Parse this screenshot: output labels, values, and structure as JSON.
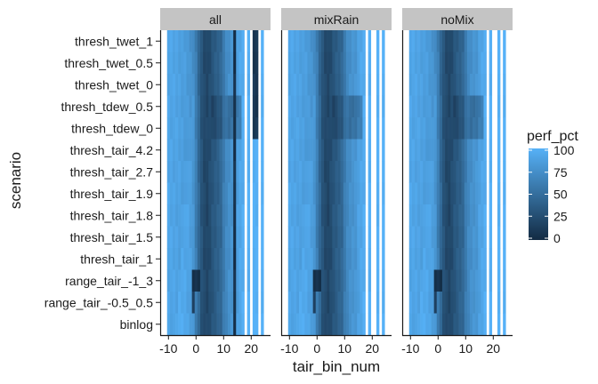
{
  "chart_data": {
    "type": "heatmap",
    "xlabel": "tair_bin_num",
    "ylabel": "scenario",
    "facets": [
      "all",
      "mixRain",
      "noMix"
    ],
    "scenarios": [
      "thresh_twet_1",
      "thresh_twet_0.5",
      "thresh_twet_0",
      "thresh_tdew_0.5",
      "thresh_tdew_0",
      "thresh_tair_4.2",
      "thresh_tair_2.7",
      "thresh_tair_1.9",
      "thresh_tair_1.8",
      "thresh_tair_1.5",
      "thresh_tair_1",
      "range_tair_-1_3",
      "range_tair_-0.5_0.5",
      "binlog"
    ],
    "x_ticks": [
      -10,
      0,
      10,
      20
    ],
    "x_tick_labels": [
      "-10",
      "0",
      "10",
      "20"
    ],
    "xlim": [
      -13,
      27
    ],
    "x_bins": [
      -10,
      -9,
      -8,
      -7,
      -6,
      -5,
      -4,
      -3,
      -2,
      -1,
      0,
      1,
      2,
      3,
      4,
      5,
      6,
      7,
      8,
      9,
      10,
      11,
      12,
      13,
      14,
      15,
      16,
      17,
      18,
      19,
      20,
      21,
      22,
      23,
      24,
      25
    ],
    "missing_bins": {
      "all": [
        18,
        20,
        23,
        25
      ],
      "mixRain": [
        18,
        20,
        21,
        23,
        25
      ],
      "noMix": [
        18,
        20,
        21,
        23,
        25
      ]
    },
    "perf_pct_profile": {
      "bins": [
        -10,
        -8,
        -6,
        -4,
        -3,
        -2,
        -1,
        0,
        1,
        2,
        3,
        4,
        5,
        6,
        7,
        8,
        9,
        10,
        11,
        12,
        13,
        14,
        15,
        16,
        17,
        19,
        21,
        22,
        24
      ],
      "values": [
        100,
        98,
        96,
        93,
        90,
        86,
        80,
        62,
        45,
        30,
        22,
        20,
        25,
        32,
        36,
        40,
        45,
        60,
        70,
        75,
        78,
        80,
        88,
        92,
        96,
        99,
        100,
        100,
        100
      ]
    },
    "legend": {
      "title": "perf_pct",
      "ticks": [
        0,
        25,
        50,
        75,
        100
      ],
      "tick_labels": [
        "0",
        "25",
        "50",
        "75",
        "100"
      ],
      "low_color": "#132B43",
      "high_color": "#56B1F7"
    },
    "panel_background": "#ffffff",
    "strip_fill": "#c4c4c4"
  }
}
